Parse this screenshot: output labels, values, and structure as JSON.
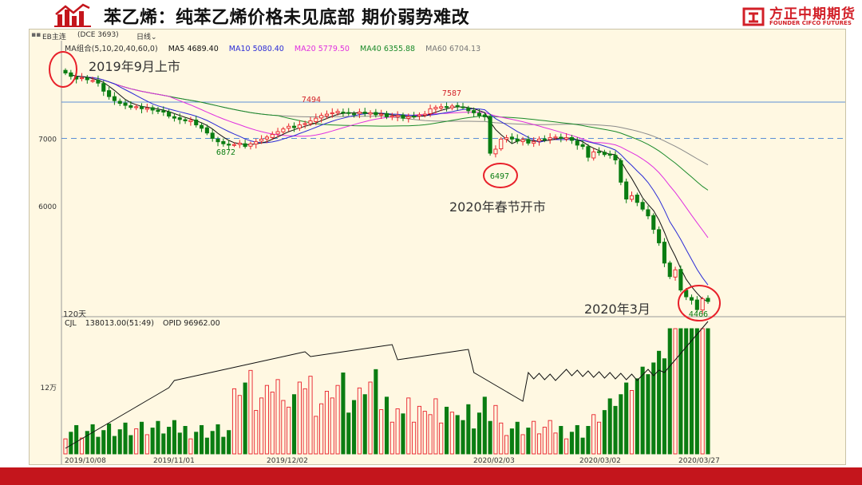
{
  "header": {
    "title": "苯乙烯：纯苯乙烯价格未见底部 期价弱势难改",
    "brand_cn": "方正中期期货",
    "brand_en": "FOUNDER CIFCO FUTURES"
  },
  "toolbar": {
    "symbol": "EB主连",
    "code": "(DCE 3693)",
    "period": "日线"
  },
  "ma_legend": {
    "group": "MA组合(5,10,20,40,60,0)",
    "items": [
      {
        "label": "MA5 4689.40",
        "color": "#111111"
      },
      {
        "label": "MA10 5080.40",
        "color": "#2b2bd6"
      },
      {
        "label": "MA20 5779.50",
        "color": "#e030e0"
      },
      {
        "label": "MA40 6355.88",
        "color": "#1a8a2a"
      },
      {
        "label": "MA60 6704.13",
        "color": "#777777"
      }
    ]
  },
  "volume_legend": {
    "name": "CJL",
    "volume": "138013.00(51:49)",
    "opid": "OPID 96962.00"
  },
  "annotations": {
    "listing": "2019年9月上市",
    "spring": "2020年春节开市",
    "march": "2020年3月",
    "days": "120天"
  },
  "colors": {
    "up": "#e8202a",
    "down": "#0a7d12",
    "accent": "#c4151c"
  },
  "chart_data": {
    "type": "candlestick",
    "x_labels": [
      "2019/10/08",
      "2019/11/01",
      "2019/12/02",
      "2020/02/03",
      "2020/03/02",
      "2020/03/27"
    ],
    "y_ticks": [
      6000,
      7000
    ],
    "y_tick_labels": [
      "6000",
      "7000"
    ],
    "price_annotations": [
      {
        "label": "7494",
        "color": "red"
      },
      {
        "label": "7587",
        "color": "red"
      },
      {
        "label": "6872",
        "color": "green"
      },
      {
        "label": "6497",
        "color": "green"
      },
      {
        "label": "4466",
        "color": "green"
      }
    ],
    "volume_axis_label": "12万",
    "close": [
      7970,
      7920,
      7880,
      7900,
      7870,
      7860,
      7820,
      7700,
      7620,
      7560,
      7520,
      7490,
      7460,
      7470,
      7440,
      7450,
      7420,
      7400,
      7390,
      7330,
      7300,
      7280,
      7260,
      7270,
      7200,
      7150,
      7080,
      7000,
      6950,
      6920,
      6900,
      6910,
      6930,
      6880,
      6920,
      6950,
      6990,
      7020,
      7060,
      7100,
      7140,
      7180,
      7160,
      7200,
      7220,
      7260,
      7300,
      7340,
      7360,
      7380,
      7400,
      7380,
      7370,
      7360,
      7390,
      7370,
      7380,
      7350,
      7360,
      7320,
      7330,
      7340,
      7300,
      7320,
      7330,
      7350,
      7360,
      7440,
      7460,
      7470,
      7460,
      7480,
      7470,
      7460,
      7410,
      7380,
      7340,
      7320,
      6780,
      6840,
      6990,
      7010,
      6990,
      6960,
      6980,
      6930,
      6950,
      6990,
      6990,
      7010,
      7020,
      7000,
      7010,
      6970,
      6900,
      6880,
      6720,
      6800,
      6800,
      6760,
      6750,
      6680,
      6350,
      6100,
      6150,
      6050,
      5950,
      5850,
      5650,
      5450,
      5150,
      4950,
      5050,
      4750,
      4650,
      4600,
      4460,
      4620,
      4580
    ]
  }
}
